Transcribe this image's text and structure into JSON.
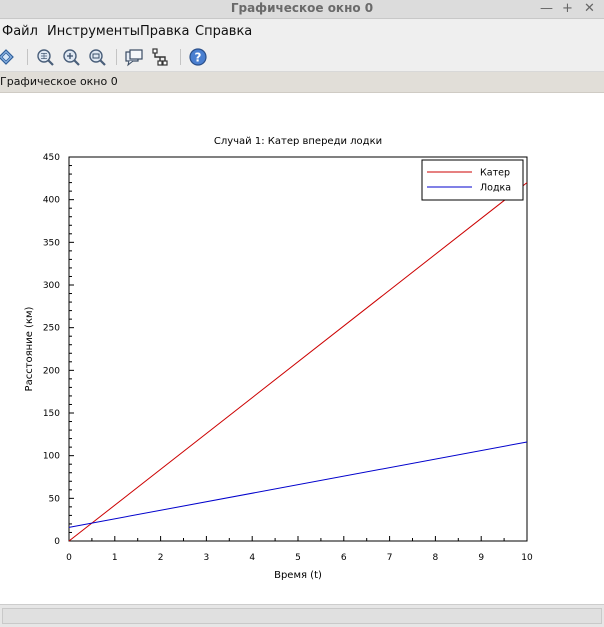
{
  "window": {
    "title": "Графическое окно 0"
  },
  "menu": [
    {
      "label": "Файл"
    },
    {
      "label": "Инструменты"
    },
    {
      "label": "Правка"
    },
    {
      "label": "Справка"
    }
  ],
  "toolbar": {
    "icons": [
      "rotate-icon",
      "zoom-grid-icon",
      "zoom-in-icon",
      "zoom-out-icon",
      "datatip-icon",
      "graph-editor-icon",
      "help-icon"
    ]
  },
  "figure_label": "Графическое окно 0",
  "chart_data": {
    "type": "line",
    "title": "Случай 1: Катер впереди лодки",
    "xlabel": "Время (t)",
    "ylabel": "Расстояние (км)",
    "xlim": [
      0,
      10
    ],
    "ylim": [
      0,
      450
    ],
    "xticks": [
      0,
      1,
      2,
      3,
      4,
      5,
      6,
      7,
      8,
      9,
      10
    ],
    "yticks": [
      0,
      50,
      100,
      150,
      200,
      250,
      300,
      350,
      400,
      450
    ],
    "legend_position": "top-right",
    "series": [
      {
        "name": "Катер",
        "color": "#cc0000",
        "x": [
          0,
          10
        ],
        "y": [
          0,
          420
        ]
      },
      {
        "name": "Лодка",
        "color": "#0000cc",
        "x": [
          0,
          10
        ],
        "y": [
          16,
          116
        ]
      }
    ]
  }
}
